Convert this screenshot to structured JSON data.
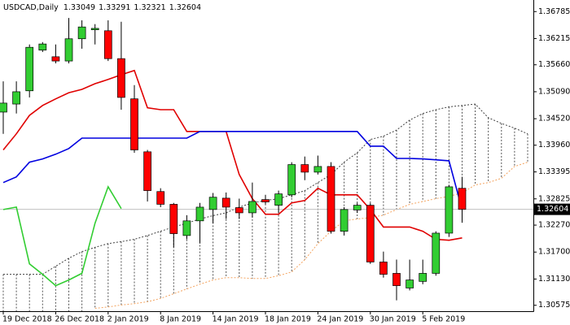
{
  "chart_data": {
    "type": "candlestick",
    "title": "USDCAD,Daily",
    "categories": [
      "19 Dec 2018",
      null,
      null,
      null,
      "26 Dec 2018",
      null,
      null,
      null,
      "2 Jan 2019",
      null,
      null,
      null,
      "8 Jan 2019",
      null,
      null,
      null,
      "14 Jan 2019",
      null,
      null,
      null,
      "18 Jan 2019",
      null,
      null,
      null,
      "24 Jan 2019",
      null,
      null,
      null,
      "30 Jan 2019",
      null,
      null,
      null,
      "5 Feb 2019",
      null,
      null,
      null,
      null,
      null,
      null,
      null,
      null
    ],
    "open": [
      1.3466,
      1.3483,
      1.3511,
      1.3597,
      1.3583,
      1.3574,
      1.3621,
      1.364,
      1.3638,
      1.3579,
      1.3494,
      1.3382,
      1.3298,
      1.3271,
      1.3205,
      1.3236,
      1.326,
      1.3284,
      1.3264,
      1.3253,
      1.3281,
      1.3269,
      1.3291,
      1.3355,
      1.3339,
      1.3351,
      1.3214,
      1.3259,
      1.3269,
      1.3149,
      1.3125,
      1.3094,
      1.3108,
      1.3125,
      1.321,
      1.33049,
      null,
      null,
      null,
      null,
      null
    ],
    "high": [
      1.3531,
      1.3531,
      1.3609,
      1.3614,
      1.3609,
      1.3665,
      1.366,
      1.3652,
      1.366,
      1.3657,
      1.3523,
      1.3386,
      1.3305,
      1.3274,
      1.3248,
      1.3274,
      1.3295,
      1.3296,
      1.3283,
      1.3317,
      1.3291,
      1.33,
      1.336,
      1.3372,
      1.3374,
      1.336,
      1.3265,
      1.3274,
      1.3274,
      1.3171,
      1.3154,
      1.3154,
      1.3154,
      1.3214,
      1.3312,
      1.33291,
      null,
      null,
      null,
      null,
      null
    ],
    "low": [
      1.342,
      1.3463,
      1.3497,
      1.3593,
      1.3569,
      1.3569,
      1.36,
      1.3609,
      1.3574,
      1.3471,
      1.338,
      1.3277,
      1.3265,
      1.318,
      1.3197,
      1.3188,
      1.3231,
      1.324,
      1.324,
      1.3243,
      1.3271,
      1.3253,
      1.3286,
      1.3322,
      1.3334,
      1.3209,
      1.3205,
      1.3253,
      1.3145,
      1.3116,
      1.3068,
      1.3089,
      1.3102,
      1.312,
      1.3202,
      1.32321,
      null,
      null,
      null,
      null,
      null
    ],
    "close": [
      1.3485,
      1.3509,
      1.3603,
      1.361,
      1.3574,
      1.3621,
      1.3646,
      1.3643,
      1.3579,
      1.3497,
      1.3386,
      1.33,
      1.3271,
      1.3209,
      1.3236,
      1.3265,
      1.3286,
      1.3265,
      1.3253,
      1.3277,
      1.3276,
      1.3293,
      1.3355,
      1.3339,
      1.3351,
      1.3214,
      1.326,
      1.3269,
      1.3149,
      1.3123,
      1.3099,
      1.3111,
      1.3125,
      1.321,
      1.3308,
      1.32604,
      null,
      null,
      null,
      null,
      null
    ],
    "bull_color": "#32cd32",
    "bear_color": "#ff0000",
    "lines": [
      {
        "color": "#e00000",
        "values": [
          1.3386,
          1.342,
          1.3459,
          1.348,
          1.3494,
          1.3507,
          1.3514,
          1.3526,
          1.3535,
          1.3545,
          1.3554,
          1.3475,
          1.3471,
          1.3471,
          1.3425,
          1.3425,
          1.3425,
          1.3425,
          1.3334,
          1.3283,
          1.325,
          1.325,
          1.3274,
          1.3279,
          1.3305,
          1.3291,
          1.3291,
          1.3291,
          1.326,
          1.3223,
          1.3223,
          1.3223,
          1.3214,
          1.3197,
          1.3195,
          1.32,
          null,
          null,
          null,
          null,
          null
        ]
      },
      {
        "color": "#0000e0",
        "values": [
          1.3317,
          1.3329,
          1.336,
          1.3367,
          1.3377,
          1.3389,
          1.3411,
          1.3411,
          1.3411,
          1.3411,
          1.3411,
          1.3411,
          1.3411,
          1.3411,
          1.3411,
          1.3425,
          1.3425,
          1.3425,
          1.3425,
          1.3425,
          1.3425,
          1.3425,
          1.3425,
          1.3425,
          1.3425,
          1.3425,
          1.3425,
          1.3425,
          1.3394,
          1.3394,
          1.3368,
          1.3368,
          1.3367,
          1.3365,
          1.3363,
          1.326,
          null,
          null,
          null,
          null,
          null
        ]
      },
      {
        "color": "#32cd32",
        "values": [
          1.326,
          1.3265,
          1.3145,
          1.3123,
          1.3099,
          1.3111,
          1.3125,
          1.3231,
          1.3308,
          1.3262,
          null,
          null,
          null,
          null,
          null,
          null,
          null,
          null,
          null,
          null,
          null,
          null,
          null,
          null,
          null,
          null,
          null,
          null,
          null,
          null,
          null,
          null,
          null,
          null,
          null,
          null,
          null,
          null,
          null,
          null,
          null
        ]
      }
    ],
    "cloud": {
      "span_a": {
        "color": "#f4a460",
        "values": [
          null,
          null,
          null,
          null,
          null,
          null,
          null,
          1.3051,
          1.3054,
          1.3058,
          1.3061,
          1.3065,
          1.3072,
          1.3082,
          1.3092,
          1.3102,
          1.3111,
          1.3116,
          1.3116,
          1.3114,
          1.3114,
          1.312,
          1.3128,
          1.3154,
          1.3188,
          1.3214,
          1.3236,
          1.324,
          1.3243,
          1.3248,
          1.326,
          1.3271,
          1.3277,
          1.3283,
          1.3288,
          1.3295,
          1.3312,
          1.3317,
          1.3326,
          1.3351,
          1.336
        ]
      },
      "span_b": {
        "color": "#404040",
        "values": [
          1.3123,
          1.3123,
          1.3123,
          1.3123,
          1.314,
          1.3157,
          1.3171,
          1.318,
          1.3188,
          1.3192,
          1.3197,
          1.3205,
          1.3214,
          1.3223,
          1.3231,
          1.324,
          1.3247,
          1.3253,
          1.3265,
          1.3274,
          1.3279,
          1.3283,
          1.3291,
          1.33,
          1.3317,
          1.3334,
          1.336,
          1.338,
          1.3408,
          1.3415,
          1.3428,
          1.3449,
          1.3463,
          1.3471,
          1.3477,
          1.348,
          1.3483,
          1.3454,
          1.3442,
          1.3432,
          1.342
        ]
      },
      "hatch_color": "#505050"
    },
    "ylim": [
      1.3045,
      1.3703
    ],
    "yticks": [
      1.36785,
      {
        "value": 1.36215,
        "label": "1.36215"
      },
      {
        "value": 1.3566,
        "label": "1.35660"
      },
      {
        "value": 1.3509,
        "label": "1.35090"
      },
      {
        "value": 1.3452,
        "label": "1.34520"
      },
      {
        "value": 1.3396,
        "label": "1.33960"
      },
      1.33395,
      1.32825,
      {
        "value": 1.3227,
        "label": "1.32270"
      },
      {
        "value": 1.317,
        "label": "1.31700"
      },
      {
        "value": 1.3113,
        "label": "1.31130"
      },
      1.30575
    ],
    "grid": false
  }
}
